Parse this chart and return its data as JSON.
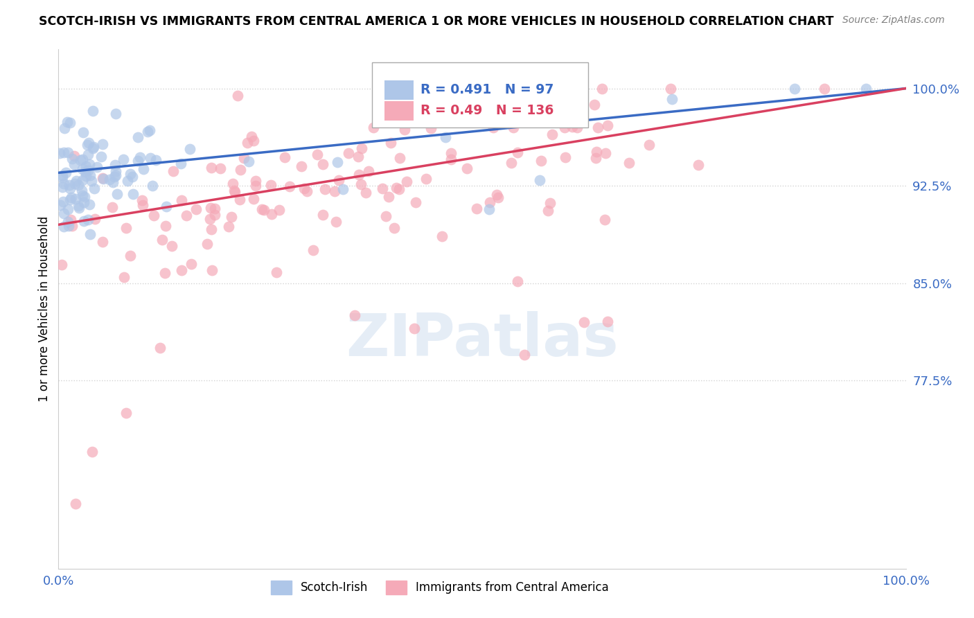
{
  "title": "SCOTCH-IRISH VS IMMIGRANTS FROM CENTRAL AMERICA 1 OR MORE VEHICLES IN HOUSEHOLD CORRELATION CHART",
  "source": "Source: ZipAtlas.com",
  "ylabel": "1 or more Vehicles in Household",
  "xlim": [
    0.0,
    1.0
  ],
  "ylim": [
    0.63,
    1.03
  ],
  "yticks": [
    0.775,
    0.85,
    0.925,
    1.0
  ],
  "ytick_labels": [
    "77.5%",
    "85.0%",
    "92.5%",
    "100.0%"
  ],
  "xtick_labels": [
    "0.0%",
    "100.0%"
  ],
  "xticks": [
    0.0,
    1.0
  ],
  "blue_fill": "#aec6e8",
  "blue_line_color": "#3a6bc4",
  "pink_fill": "#f5aab8",
  "pink_line_color": "#d94060",
  "blue_R": 0.491,
  "blue_N": 97,
  "pink_R": 0.49,
  "pink_N": 136,
  "watermark": "ZIPatlas",
  "blue_line": [
    0.0,
    0.935,
    1.0,
    1.0
  ],
  "pink_line": [
    0.0,
    0.895,
    1.0,
    1.0
  ]
}
